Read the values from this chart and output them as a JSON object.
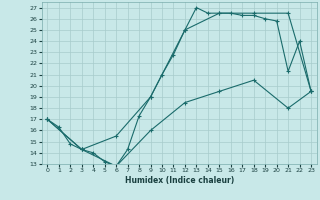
{
  "xlabel": "Humidex (Indice chaleur)",
  "bg_color": "#c8e8e8",
  "grid_color": "#a8cccc",
  "line_color": "#1a6b6b",
  "xmin": -0.5,
  "xmax": 23.5,
  "ymin": 13,
  "ymax": 27.5,
  "series": [
    {
      "x": [
        0,
        1,
        2,
        3,
        4,
        5,
        6,
        7,
        8,
        9,
        10,
        11,
        12,
        13,
        14,
        15,
        16,
        17,
        18,
        19,
        20,
        21,
        22,
        23
      ],
      "y": [
        17.0,
        16.3,
        14.8,
        14.3,
        14.0,
        13.2,
        12.8,
        14.3,
        17.3,
        19.0,
        21.0,
        22.8,
        25.0,
        27.0,
        26.5,
        26.5,
        26.5,
        26.3,
        26.3,
        26.0,
        25.8,
        21.3,
        24.0,
        19.5
      ]
    },
    {
      "x": [
        0,
        3,
        6,
        9,
        12,
        15,
        18,
        21,
        23
      ],
      "y": [
        17.0,
        14.3,
        15.5,
        19.0,
        25.0,
        26.5,
        26.5,
        26.5,
        19.5
      ]
    },
    {
      "x": [
        0,
        3,
        6,
        9,
        12,
        15,
        18,
        21,
        23
      ],
      "y": [
        17.0,
        14.3,
        12.8,
        16.0,
        18.5,
        19.5,
        20.5,
        18.0,
        19.5
      ]
    }
  ]
}
